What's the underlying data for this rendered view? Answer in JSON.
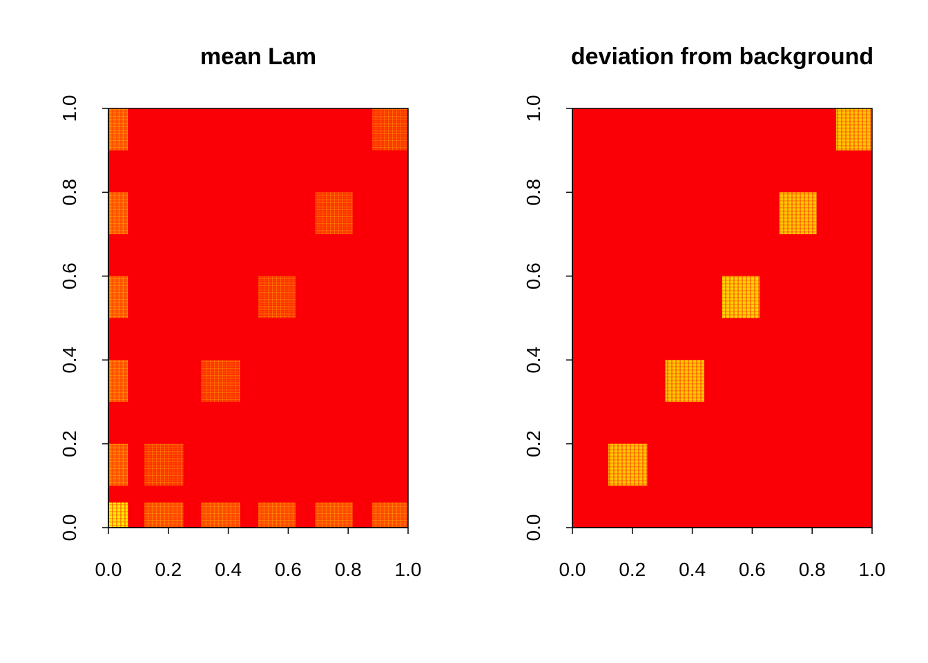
{
  "chart_data": [
    {
      "type": "heatmap",
      "title": "mean Lam",
      "xlabel": "",
      "ylabel": "",
      "xlim": [
        0,
        1
      ],
      "ylim": [
        0,
        1
      ],
      "x_ticks": [
        "0.0",
        "0.2",
        "0.4",
        "0.6",
        "0.8",
        "1.0"
      ],
      "y_ticks": [
        "0.0",
        "0.2",
        "0.4",
        "0.6",
        "0.8",
        "1.0"
      ],
      "colormap": [
        "#ff0000",
        "#ff6a00",
        "#ffff00"
      ],
      "background_color": "#fa0006",
      "grid": false,
      "blocks": [
        {
          "x": [
            0.0,
            0.065
          ],
          "y": [
            0.0,
            0.06
          ],
          "level": 0.95
        },
        {
          "x": [
            0.12,
            0.25
          ],
          "y": [
            0.0,
            0.06
          ],
          "level": 0.35
        },
        {
          "x": [
            0.31,
            0.44
          ],
          "y": [
            0.0,
            0.06
          ],
          "level": 0.35
        },
        {
          "x": [
            0.5,
            0.625
          ],
          "y": [
            0.0,
            0.06
          ],
          "level": 0.35
        },
        {
          "x": [
            0.69,
            0.815
          ],
          "y": [
            0.0,
            0.06
          ],
          "level": 0.35
        },
        {
          "x": [
            0.88,
            1.0
          ],
          "y": [
            0.0,
            0.06
          ],
          "level": 0.35
        },
        {
          "x": [
            0.0,
            0.065
          ],
          "y": [
            0.1,
            0.2
          ],
          "level": 0.45
        },
        {
          "x": [
            0.0,
            0.065
          ],
          "y": [
            0.3,
            0.4
          ],
          "level": 0.45
        },
        {
          "x": [
            0.0,
            0.065
          ],
          "y": [
            0.5,
            0.6
          ],
          "level": 0.45
        },
        {
          "x": [
            0.0,
            0.065
          ],
          "y": [
            0.7,
            0.8
          ],
          "level": 0.45
        },
        {
          "x": [
            0.0,
            0.065
          ],
          "y": [
            0.9,
            1.0
          ],
          "level": 0.45
        },
        {
          "x": [
            0.12,
            0.25
          ],
          "y": [
            0.1,
            0.2
          ],
          "level": 0.2
        },
        {
          "x": [
            0.31,
            0.44
          ],
          "y": [
            0.3,
            0.4
          ],
          "level": 0.2
        },
        {
          "x": [
            0.5,
            0.625
          ],
          "y": [
            0.5,
            0.6
          ],
          "level": 0.2
        },
        {
          "x": [
            0.69,
            0.815
          ],
          "y": [
            0.7,
            0.8
          ],
          "level": 0.2
        },
        {
          "x": [
            0.88,
            1.0
          ],
          "y": [
            0.9,
            1.0
          ],
          "level": 0.2
        }
      ]
    },
    {
      "type": "heatmap",
      "title": "deviation from background",
      "xlabel": "",
      "ylabel": "",
      "xlim": [
        0,
        1
      ],
      "ylim": [
        0,
        1
      ],
      "x_ticks": [
        "0.0",
        "0.2",
        "0.4",
        "0.6",
        "0.8",
        "1.0"
      ],
      "y_ticks": [
        "0.0",
        "0.2",
        "0.4",
        "0.6",
        "0.8",
        "1.0"
      ],
      "colormap": [
        "#ff0000",
        "#ff6a00",
        "#ffff00"
      ],
      "background_color": "#fa0006",
      "grid": false,
      "blocks": [
        {
          "x": [
            0.12,
            0.25
          ],
          "y": [
            0.1,
            0.2
          ],
          "level": 0.8
        },
        {
          "x": [
            0.31,
            0.44
          ],
          "y": [
            0.3,
            0.4
          ],
          "level": 0.8
        },
        {
          "x": [
            0.5,
            0.625
          ],
          "y": [
            0.5,
            0.6
          ],
          "level": 0.85
        },
        {
          "x": [
            0.69,
            0.815
          ],
          "y": [
            0.7,
            0.8
          ],
          "level": 0.8
        },
        {
          "x": [
            0.88,
            1.0
          ],
          "y": [
            0.9,
            1.0
          ],
          "level": 0.8
        }
      ]
    }
  ]
}
